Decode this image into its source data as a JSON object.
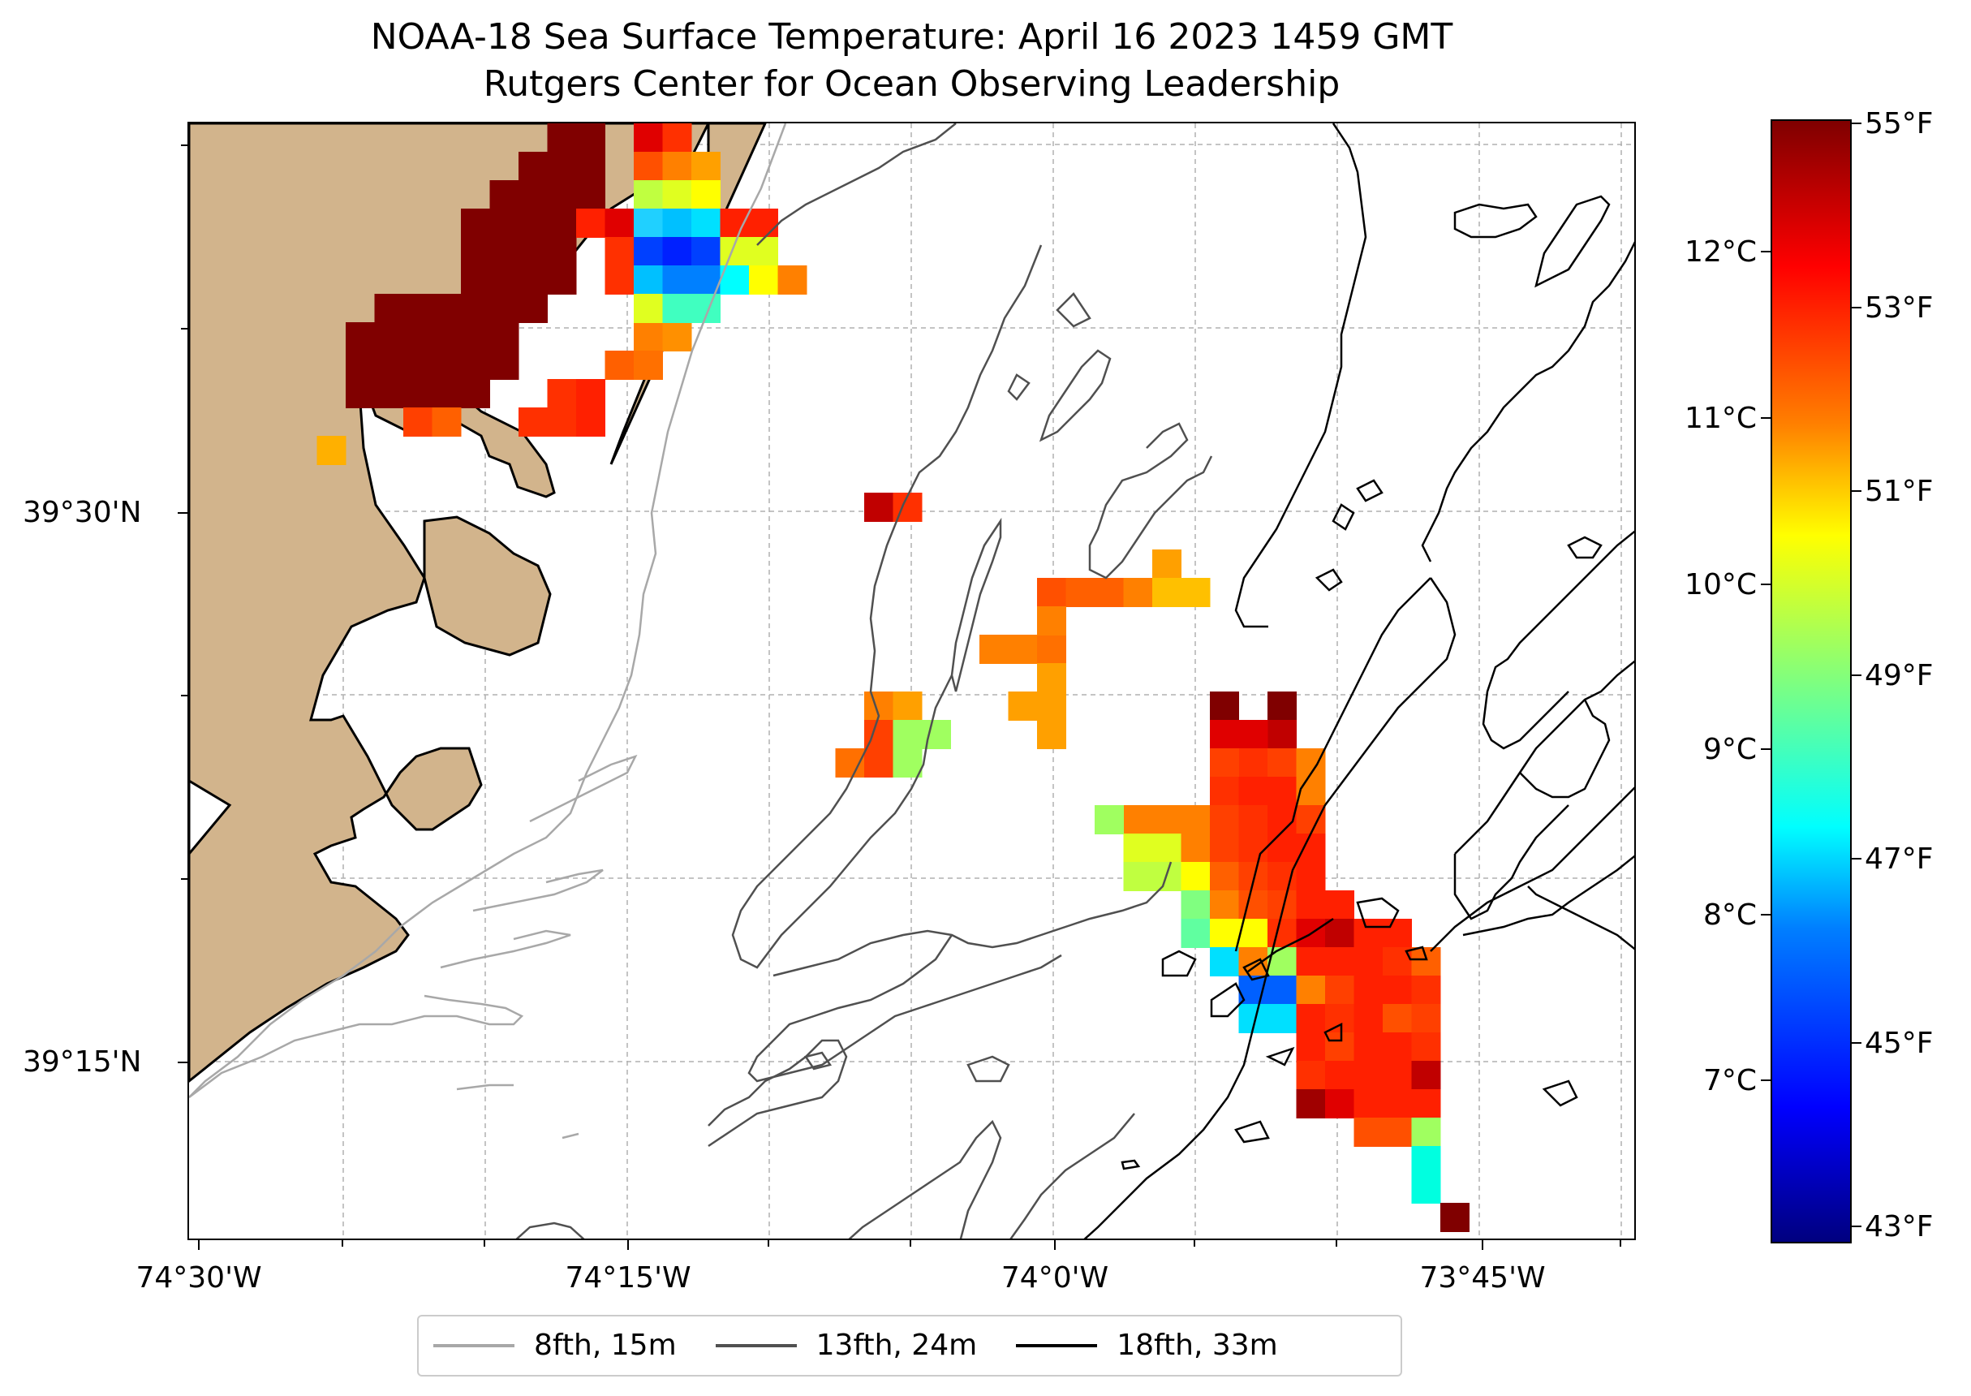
{
  "title": {
    "line1": "NOAA-18 Sea Surface Temperature: April 16 2023 1459 GMT",
    "line2": "Rutgers Center for Ocean Observing Leadership"
  },
  "axes": {
    "y_ticks": [
      {
        "label": "39°30'N",
        "lat": 39.5
      },
      {
        "label": "39°15'N",
        "lat": 39.25
      }
    ],
    "x_ticks": [
      {
        "label": "74°30'W",
        "lon": -74.5
      },
      {
        "label": "74°15'W",
        "lon": -74.25
      },
      {
        "label": "74°0'W",
        "lon": -74.0
      },
      {
        "label": "73°45'W",
        "lon": -73.75
      }
    ]
  },
  "colorbar": {
    "celsius_labels": [
      "12°C",
      "11°C",
      "10°C",
      "9°C",
      "8°C",
      "7°C"
    ],
    "fahrenheit_labels": [
      "55°F",
      "53°F",
      "51°F",
      "49°F",
      "47°F",
      "45°F",
      "43°F"
    ],
    "range_f": [
      42.8,
      55.0
    ],
    "colormap": "jet"
  },
  "legend": {
    "items": [
      {
        "label": "8fth, 15m",
        "color": "#a8a8a8"
      },
      {
        "label": "13fth, 24m",
        "color": "#505050"
      },
      {
        "label": "18fth, 33m",
        "color": "#000000"
      }
    ]
  },
  "colors": {
    "land": "#d2b48c",
    "grid": "#b0b0b0"
  }
}
